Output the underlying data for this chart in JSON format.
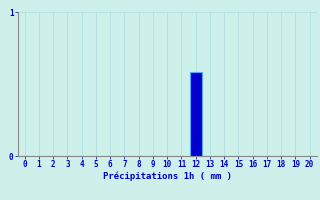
{
  "title": "",
  "xlabel": "Précipitations 1h ( mm )",
  "ylabel": "",
  "background_color": "#cef0eb",
  "bar_color": "#0000cc",
  "bar_edge_color": "#55aaff",
  "categories": [
    0,
    1,
    2,
    3,
    4,
    5,
    6,
    7,
    8,
    9,
    10,
    11,
    12,
    13,
    14,
    15,
    16,
    17,
    18,
    19,
    20
  ],
  "values": [
    0,
    0,
    0,
    0,
    0,
    0,
    0,
    0,
    0,
    0,
    0,
    0,
    0.58,
    0,
    0,
    0,
    0,
    0,
    0,
    0,
    0
  ],
  "xlim": [
    -0.5,
    20.5
  ],
  "ylim": [
    0,
    1
  ],
  "yticks": [
    0,
    1
  ],
  "xticks": [
    0,
    1,
    2,
    3,
    4,
    5,
    6,
    7,
    8,
    9,
    10,
    11,
    12,
    13,
    14,
    15,
    16,
    17,
    18,
    19,
    20
  ],
  "grid_color": "#aaddda",
  "axis_color": "#0000cc",
  "tick_color": "#0000cc",
  "label_fontsize": 6.5,
  "tick_fontsize": 5.5,
  "bar_width": 0.85
}
